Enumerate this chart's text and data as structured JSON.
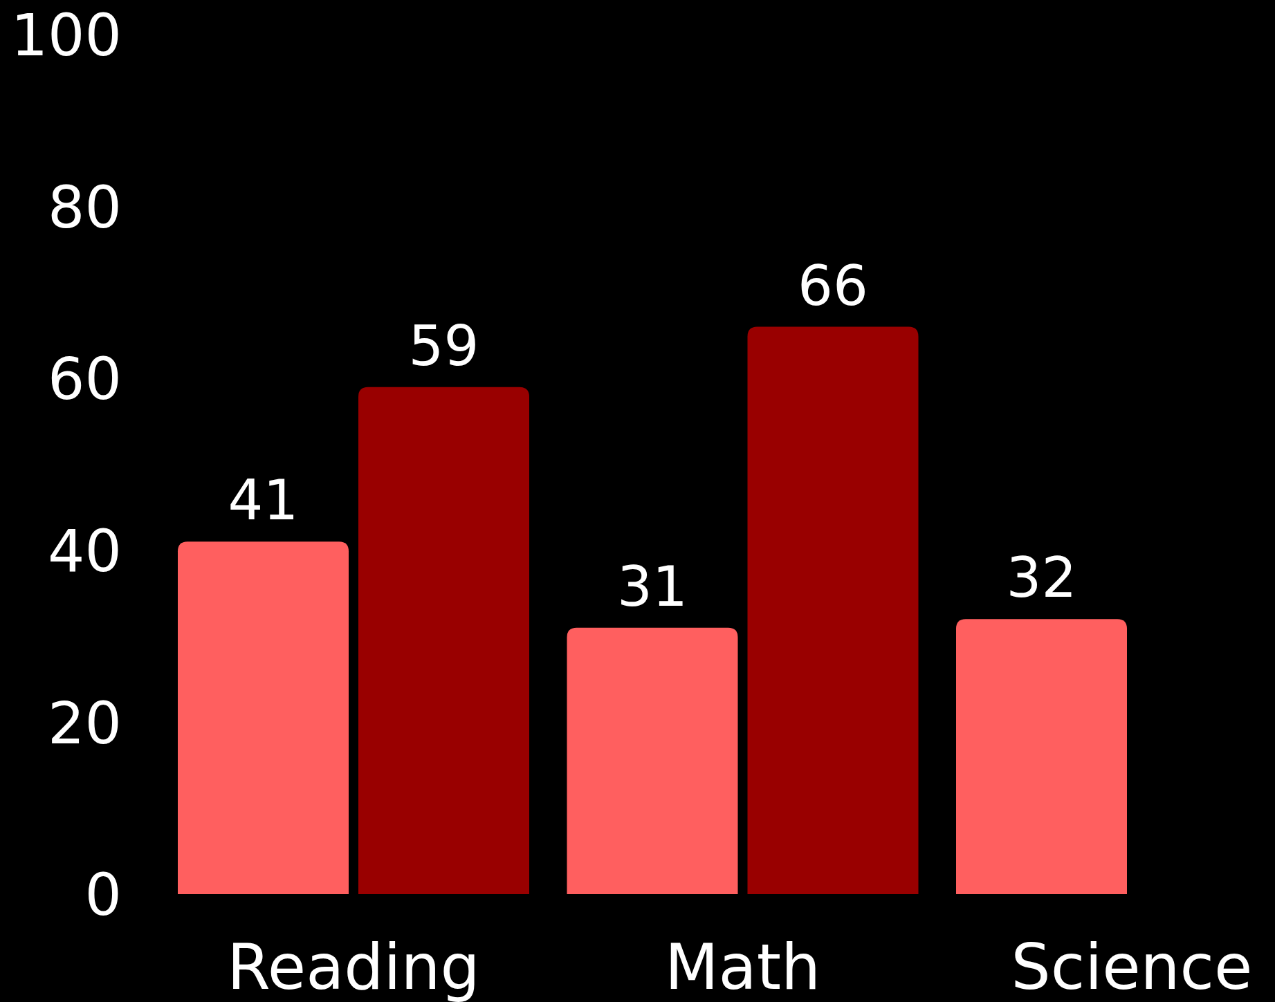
{
  "chart_data": {
    "type": "bar",
    "categories": [
      "Reading",
      "Math",
      "Science"
    ],
    "series": [
      {
        "color": "#ff5f5f",
        "values": [
          41,
          31,
          32
        ]
      },
      {
        "color": "#990000",
        "values": [
          59,
          66,
          null
        ]
      }
    ],
    "ylim": [
      0,
      100
    ],
    "yticks": [
      0,
      20,
      40,
      60,
      80,
      100
    ],
    "data_labels": true
  }
}
